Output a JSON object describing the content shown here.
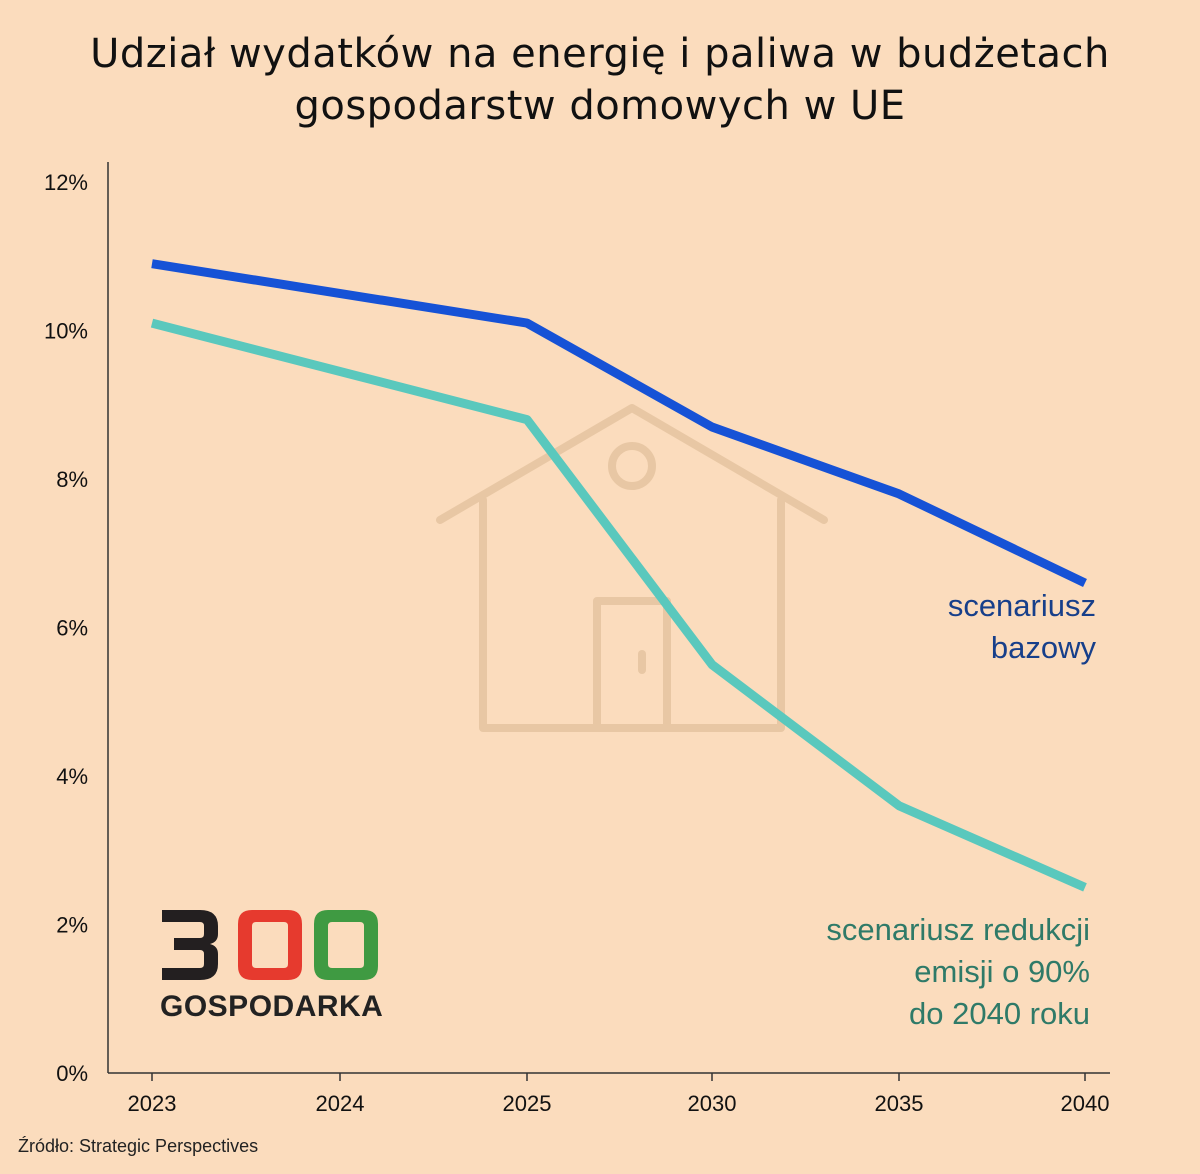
{
  "title_line1": "Udział wydatków na energię i paliwa w budżetach",
  "title_line2": "gospodarstw domowych w UE",
  "source": "Źródło:  Strategic Perspectives",
  "logo": {
    "number": "300",
    "word": "GOSPODARKA",
    "colors": [
      "#231f20",
      "#e63a2e",
      "#3f9a42"
    ]
  },
  "colors": {
    "background": "#fbdcbd",
    "base": "#1652d6",
    "reduction": "#5ac8bd",
    "base_label": "#173f8a",
    "reduction_label": "#2f7a68",
    "house": "#e8c7a4"
  },
  "icons": [
    "house-icon"
  ],
  "chart_data": {
    "type": "line",
    "title": "Udział wydatków na energię i paliwa w budżetach gospodarstw domowych w UE",
    "x": [
      "2023",
      "2024",
      "2025",
      "2030",
      "2035",
      "2040"
    ],
    "ylim": [
      0,
      12
    ],
    "yticks": [
      "0%",
      "2%",
      "4%",
      "6%",
      "8%",
      "10%",
      "12%"
    ],
    "ytick_values": [
      0,
      2,
      4,
      6,
      8,
      10,
      12
    ],
    "series": [
      {
        "name": "scenariusz bazowy",
        "label_lines": [
          "scenariusz",
          "bazowy"
        ],
        "values": [
          10.9,
          null,
          10.1,
          8.7,
          7.8,
          6.6
        ]
      },
      {
        "name": "scenariusz redukcji emisji o 90% do 2040 roku",
        "label_lines": [
          "scenariusz redukcji",
          "emisji o 90%",
          "do 2040 roku"
        ],
        "values": [
          10.1,
          null,
          8.8,
          5.5,
          3.6,
          2.5
        ]
      }
    ]
  }
}
